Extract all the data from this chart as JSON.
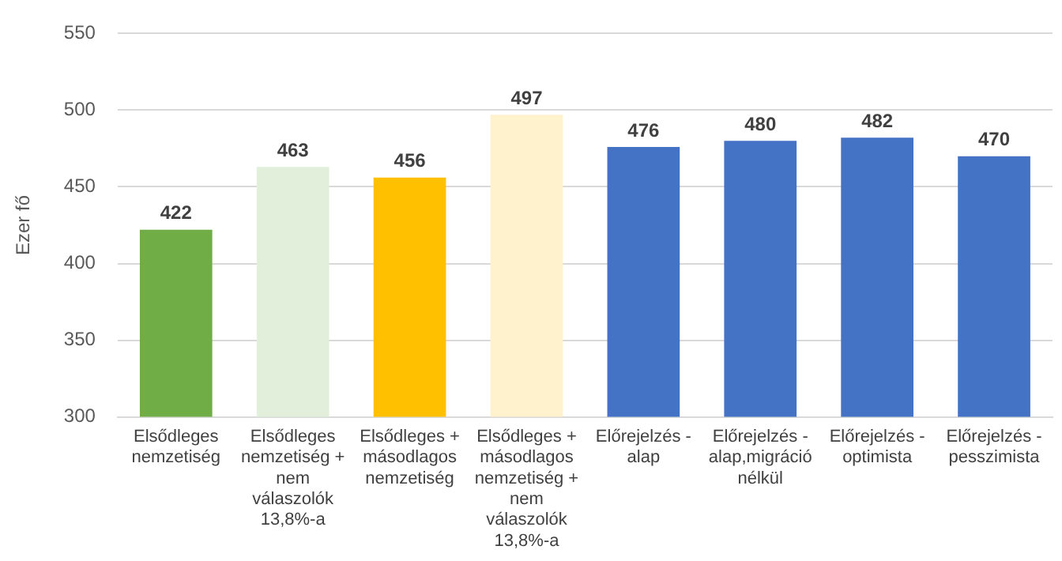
{
  "chart_data": {
    "type": "bar",
    "ylabel": "Ezer fő",
    "categories": [
      "Elsődleges nemzetiség",
      "Elsődleges nemzetiség + nem válaszolók 13,8%-a",
      "Elsődleges + másodlagos nemzetiség",
      "Elsődleges + másodlagos nemzetiség + nem válaszolók 13,8%-a",
      "Előrejelzés - alap",
      "Előrejelzés - alap,migráció nélkül",
      "Előrejelzés - optimista",
      "Előrejelzés - pesszimista"
    ],
    "values": [
      422,
      463,
      456,
      497,
      476,
      480,
      482,
      470
    ],
    "colors": [
      "#70ad47",
      "#e2efda",
      "#ffc000",
      "#fff2cc",
      "#4472c4",
      "#4472c4",
      "#4472c4",
      "#4472c4"
    ],
    "ylim": [
      300,
      550
    ],
    "yticks": [
      300,
      350,
      400,
      450,
      500,
      550
    ],
    "grid": "y",
    "data_labels": true,
    "legend": false
  }
}
